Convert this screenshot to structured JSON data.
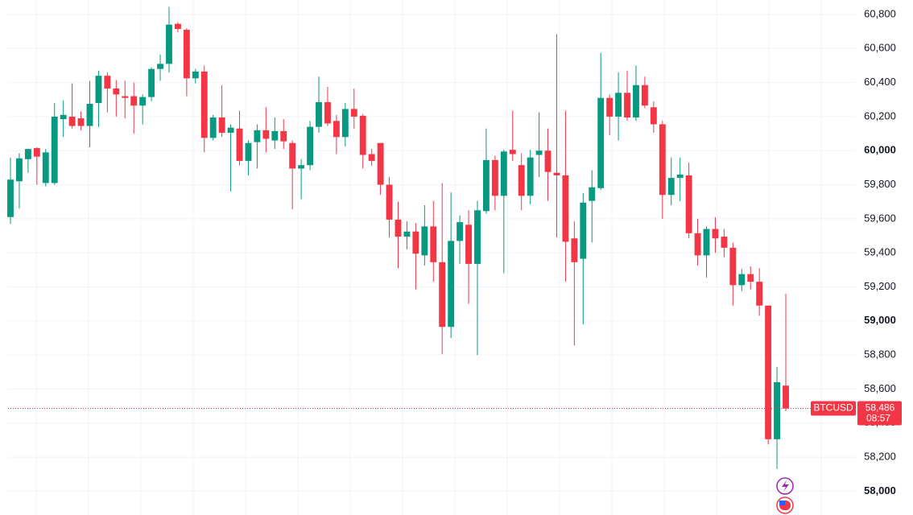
{
  "chart_data": {
    "type": "candlestick",
    "symbol": "BTCUSD",
    "last_price": {
      "value": 58486,
      "label": "58,486"
    },
    "countdown": "08:57",
    "up_color": "#089981",
    "down_color": "#f23645",
    "grid": true,
    "ylim": [
      57860,
      60885
    ],
    "yticks": [
      {
        "value": 58000,
        "label": "58,000"
      },
      {
        "value": 58200,
        "label": "58,200"
      },
      {
        "value": 58400,
        "label": "58,400"
      },
      {
        "value": 58600,
        "label": "58,600"
      },
      {
        "value": 58800,
        "label": "58,800"
      },
      {
        "value": 59000,
        "label": "59,000"
      },
      {
        "value": 59200,
        "label": "59,200"
      },
      {
        "value": 59400,
        "label": "59,400"
      },
      {
        "value": 59600,
        "label": "59,600"
      },
      {
        "value": 59800,
        "label": "59,800"
      },
      {
        "value": 60000,
        "label": "60,000"
      },
      {
        "value": 60200,
        "label": "60,200"
      },
      {
        "value": 60400,
        "label": "60,400"
      },
      {
        "value": 60600,
        "label": "60,600"
      },
      {
        "value": 60800,
        "label": "60,800"
      }
    ],
    "open": [
      59610,
      59820,
      59950,
      60015,
      59810,
      59810,
      60185,
      60200,
      60190,
      60145,
      60280,
      60440,
      60365,
      60320,
      60320,
      60265,
      60315,
      60480,
      60510,
      60745,
      60710,
      60425,
      60465,
      60075,
      60195,
      60105,
      60130,
      59940,
      60050,
      60120,
      60060,
      60115,
      60045,
      59895,
      59915,
      60140,
      60285,
      60175,
      60080,
      60245,
      60205,
      59980,
      60045,
      59800,
      59595,
      59495,
      59525,
      59385,
      59555,
      59345,
      58965,
      59470,
      59565,
      59335,
      59645,
      59945,
      59735,
      60005,
      59915,
      59735,
      59975,
      60000,
      59870,
      59855,
      59485,
      59365,
      59705,
      59780,
      60310,
      60200,
      60340,
      60195,
      60385,
      60255,
      60155,
      59740,
      59840,
      59855,
      59515,
      59385,
      59540,
      59495,
      59430,
      59210,
      59275,
      59230,
      59090,
      58305,
      58620
    ],
    "high": [
      59960,
      59985,
      60010,
      60020,
      60010,
      60280,
      60295,
      60395,
      60230,
      60410,
      60470,
      60460,
      60415,
      60410,
      60400,
      60330,
      60490,
      60565,
      60845,
      60755,
      60720,
      60480,
      60500,
      60210,
      60385,
      60155,
      60235,
      60060,
      60155,
      60255,
      60195,
      60185,
      60060,
      59950,
      60175,
      60435,
      60375,
      60210,
      60280,
      60365,
      60215,
      60010,
      60045,
      59845,
      59700,
      59585,
      59575,
      59680,
      59705,
      59810,
      59755,
      59620,
      59650,
      59705,
      60130,
      59970,
      60005,
      60235,
      59985,
      60005,
      60225,
      60130,
      60685,
      60235,
      59585,
      59750,
      59885,
      60575,
      60330,
      60460,
      60470,
      60500,
      60435,
      60290,
      60175,
      59960,
      59960,
      59930,
      59600,
      59555,
      59610,
      59540,
      59460,
      59305,
      59320,
      59310,
      59090,
      58730,
      59160
    ],
    "low": [
      59570,
      59660,
      59870,
      59800,
      59790,
      59800,
      60080,
      60130,
      60120,
      60020,
      60140,
      60225,
      60200,
      60190,
      60100,
      60155,
      60290,
      60410,
      60460,
      60695,
      60320,
      60395,
      59990,
      60060,
      60080,
      59760,
      59915,
      59855,
      59895,
      59990,
      60010,
      60010,
      59655,
      59715,
      59885,
      60105,
      60145,
      59980,
      60025,
      60130,
      59895,
      59910,
      59740,
      59490,
      59310,
      59420,
      59185,
      59325,
      59230,
      58805,
      58900,
      59335,
      59100,
      58800,
      59630,
      59650,
      59280,
      59940,
      59650,
      59685,
      59845,
      59705,
      59490,
      59230,
      58855,
      58980,
      59460,
      59770,
      60090,
      60060,
      60175,
      60175,
      60250,
      60105,
      59600,
      59680,
      59705,
      59485,
      59325,
      59255,
      59400,
      59375,
      59090,
      59175,
      59185,
      59030,
      58275,
      58130,
      58470
    ],
    "close": [
      59830,
      59955,
      60010,
      59965,
      59990,
      60200,
      60210,
      60145,
      60145,
      60275,
      60440,
      60365,
      60330,
      60310,
      60265,
      60315,
      60480,
      60510,
      60740,
      60715,
      60425,
      60465,
      60075,
      60195,
      60105,
      60135,
      59940,
      60045,
      60120,
      60070,
      60115,
      60055,
      59895,
      59915,
      60140,
      60285,
      60160,
      60080,
      60245,
      60200,
      59975,
      59940,
      59800,
      59595,
      59495,
      59525,
      59395,
      59555,
      59345,
      58965,
      59470,
      59580,
      59335,
      59650,
      59945,
      59735,
      59995,
      59980,
      59735,
      59960,
      60000,
      59875,
      59855,
      59465,
      59345,
      59695,
      59785,
      60310,
      60200,
      60340,
      60195,
      60385,
      60265,
      60155,
      59740,
      59840,
      59860,
      59515,
      59385,
      59540,
      59485,
      59430,
      59210,
      59275,
      59230,
      59090,
      58305,
      58640,
      58486
    ]
  }
}
